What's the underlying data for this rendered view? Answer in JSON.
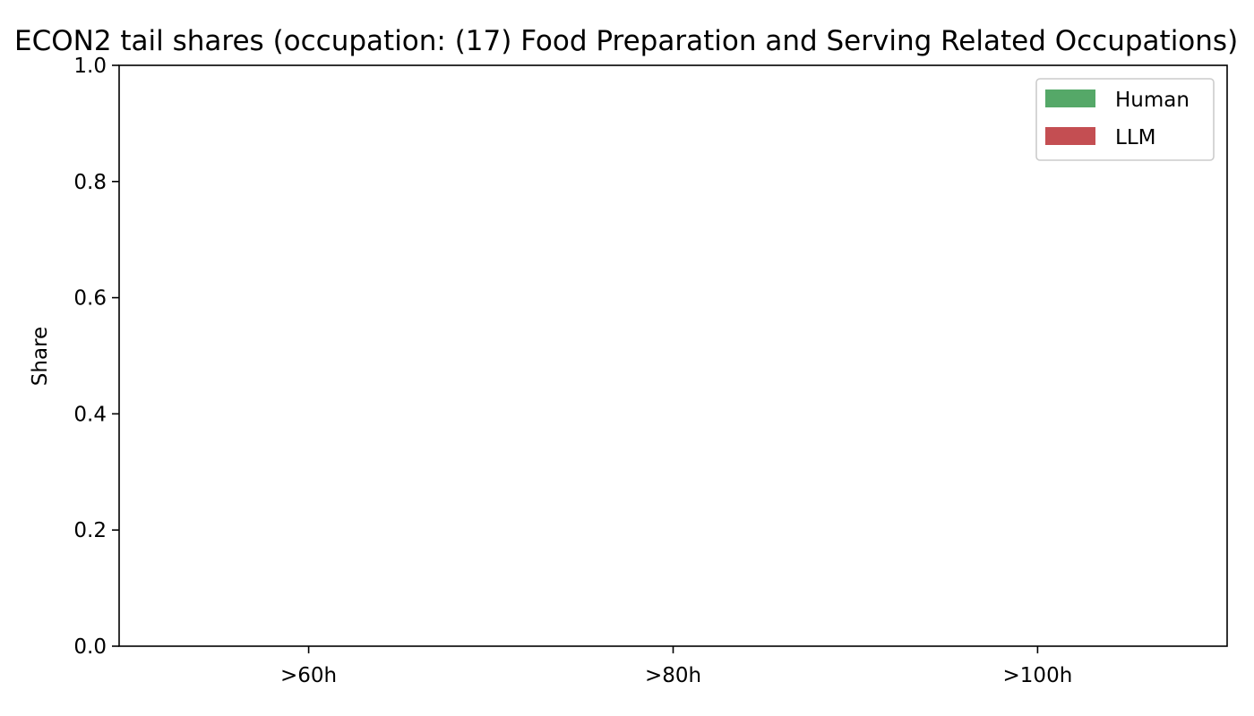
{
  "chart_data": {
    "type": "bar",
    "title": "ECON2 tail shares (occupation: (17) Food Preparation and Serving Related Occupations)",
    "ylabel": "Share",
    "xlabel": "",
    "categories": [
      ">60h",
      ">80h",
      ">100h"
    ],
    "series": [
      {
        "name": "Human",
        "values": [
          0,
          0,
          0
        ],
        "color": "#55a868"
      },
      {
        "name": "LLM",
        "values": [
          0,
          0,
          0
        ],
        "color": "#c44e52"
      }
    ],
    "ylim": [
      0,
      1.0
    ],
    "yticks": [
      "0.0",
      "0.2",
      "0.4",
      "0.6",
      "0.8",
      "1.0"
    ],
    "grid": false,
    "legend_position": "top-right"
  }
}
